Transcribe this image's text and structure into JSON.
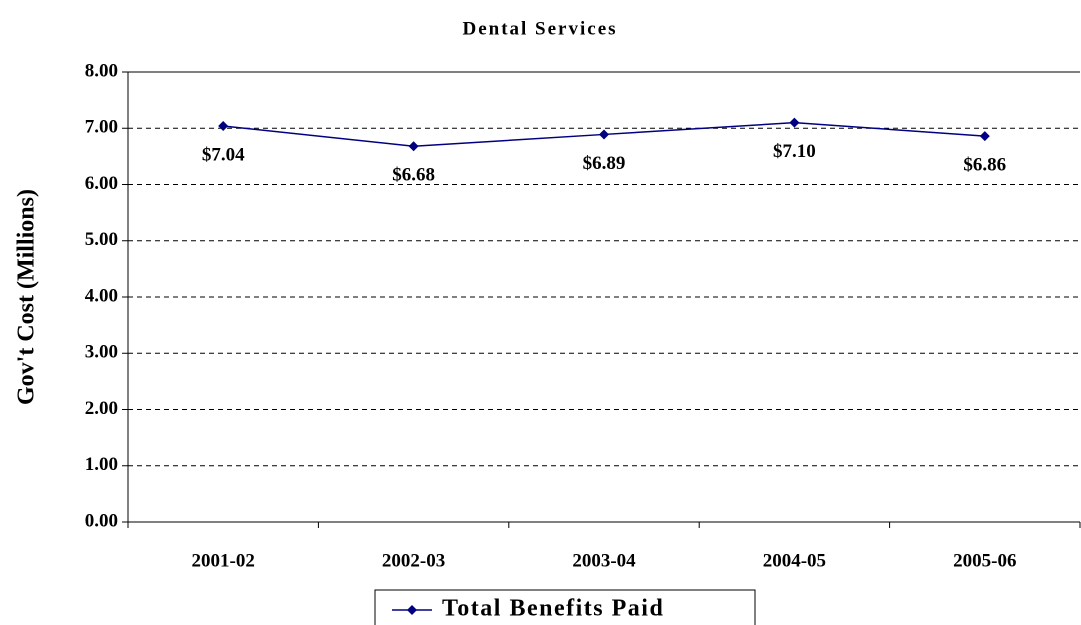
{
  "chart_data": {
    "type": "line",
    "title": "Dental Services",
    "y_label": "Gov't Cost (Millions)",
    "categories": [
      "2001-02",
      "2002-03",
      "2003-04",
      "2004-05",
      "2005-06"
    ],
    "series": [
      {
        "name": "Total Benefits Paid",
        "color": "#000080",
        "values": [
          7.04,
          6.68,
          6.89,
          7.1,
          6.86
        ],
        "value_labels": [
          "$7.04",
          "$6.68",
          "$6.89",
          "$7.10",
          "$6.86"
        ]
      }
    ],
    "ylim": [
      0,
      8
    ],
    "yticks": [
      {
        "value": 0,
        "label": "0.00"
      },
      {
        "value": 1,
        "label": "1.00"
      },
      {
        "value": 2,
        "label": "2.00"
      },
      {
        "value": 3,
        "label": "3.00"
      },
      {
        "value": 4,
        "label": "4.00"
      },
      {
        "value": 5,
        "label": "5.00"
      },
      {
        "value": 6,
        "label": "6.00"
      },
      {
        "value": 7,
        "label": "7.00"
      },
      {
        "value": 8,
        "label": "8.00"
      }
    ],
    "grid": true,
    "legend": "bottom"
  }
}
